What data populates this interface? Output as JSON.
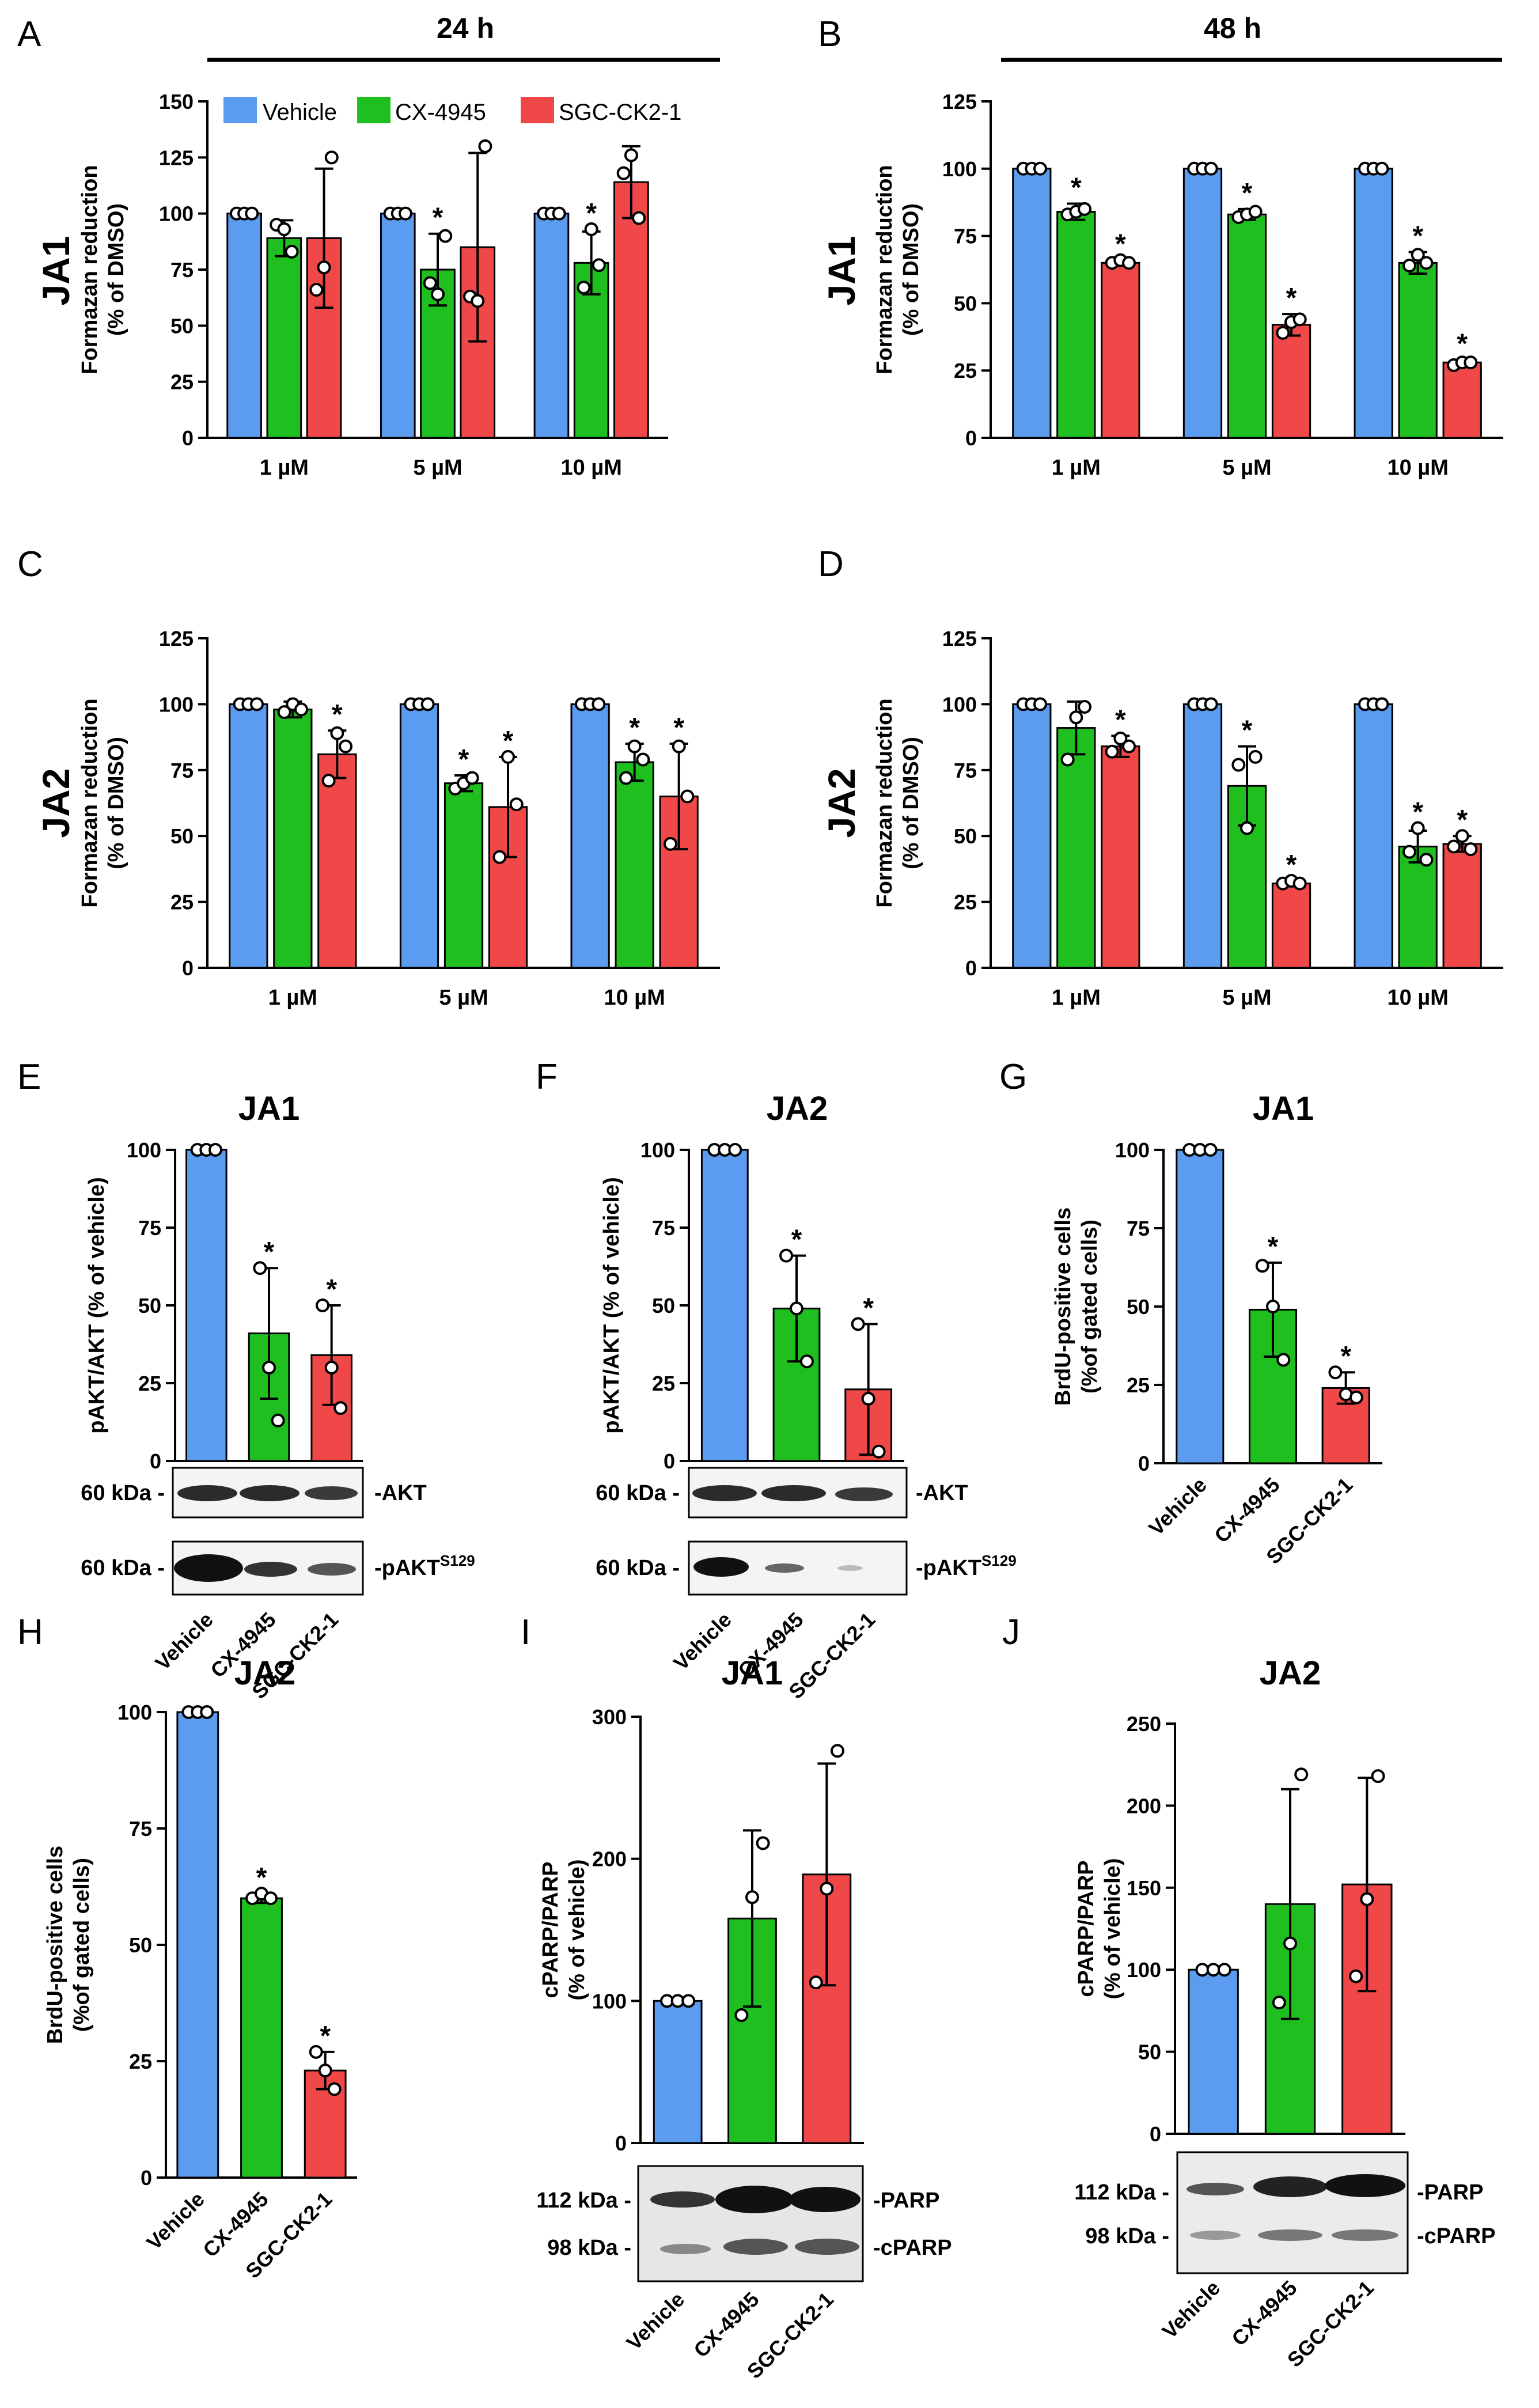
{
  "colors": {
    "vehicle": "#5b9bf0",
    "cx": "#1fbf1f",
    "sgc": "#f04848",
    "axis": "#000000"
  },
  "time_labels": {
    "h24": "24 h",
    "h48": "48 h"
  },
  "legend": {
    "vehicle": "Vehicle",
    "cx": "CX-4945",
    "sgc": "SGC-CK2-1"
  },
  "panels": {
    "A": {
      "letter": "A",
      "row_label": "JA1",
      "ylabel_lines": [
        "Formazan reduction",
        "(% of DMSO)"
      ]
    },
    "B": {
      "letter": "B",
      "row_label": "JA1",
      "ylabel_lines": [
        "Formazan reduction",
        "(% of DMSO)"
      ]
    },
    "C": {
      "letter": "C",
      "row_label": "JA2",
      "ylabel_lines": [
        "Formazan reduction",
        "(% of DMSO)"
      ]
    },
    "D": {
      "letter": "D",
      "row_label": "JA2",
      "ylabel_lines": [
        "Formazan reduction",
        "(% of DMSO)"
      ]
    },
    "E": {
      "letter": "E",
      "title": "JA1",
      "ylabel_lines": [
        "pAKT/AKT (% of vehicle)"
      ],
      "blot_rows": [
        {
          "kda": "60 kDa -",
          "label": "-AKT"
        },
        {
          "kda": "60 kDa -",
          "label": "-pAKT",
          "sup": "S129"
        }
      ]
    },
    "F": {
      "letter": "F",
      "title": "JA2",
      "ylabel_lines": [
        "pAKT/AKT (% of vehicle)"
      ],
      "blot_rows": [
        {
          "kda": "60 kDa -",
          "label": "-AKT"
        },
        {
          "kda": "60 kDa -",
          "label": "-pAKT",
          "sup": "S129"
        }
      ]
    },
    "G": {
      "letter": "G",
      "title": "JA1",
      "ylabel_lines": [
        "BrdU-positive cells",
        "(%of gated cells)"
      ]
    },
    "H": {
      "letter": "H",
      "title": "JA2",
      "ylabel_lines": [
        "BrdU-positive cells",
        "(%of gated cells)"
      ]
    },
    "I": {
      "letter": "I",
      "title": "JA1",
      "ylabel_lines": [
        "cPARP/PARP",
        "(% of vehicle)"
      ],
      "blot_rows": [
        {
          "kda": "112 kDa -",
          "label": "-PARP"
        },
        {
          "kda": "98 kDa -",
          "label": "-cPARP"
        }
      ]
    },
    "J": {
      "letter": "J",
      "title": "JA2",
      "ylabel_lines": [
        "cPARP/PARP",
        "(% of vehicle)"
      ],
      "blot_rows": [
        {
          "kda": "112 kDa -",
          "label": "-PARP"
        },
        {
          "kda": "98 kDa -",
          "label": "-cPARP"
        }
      ]
    }
  },
  "chart_data": [
    {
      "id": "A",
      "type": "bar",
      "title": "JA1 24 h",
      "ylabel": "Formazan reduction (% of DMSO)",
      "ylim": [
        0,
        150
      ],
      "yticks": [
        0,
        25,
        50,
        75,
        100,
        125,
        150
      ],
      "categories": [
        "1 µM",
        "5 µM",
        "10 µM"
      ],
      "series": [
        {
          "name": "Vehicle",
          "values": [
            100,
            100,
            100
          ],
          "err": [
            0,
            0,
            0
          ],
          "points": [
            [
              100,
              100,
              100
            ],
            [
              100,
              100,
              100
            ],
            [
              100,
              100,
              100
            ]
          ],
          "sig": [
            false,
            false,
            false
          ]
        },
        {
          "name": "CX-4945",
          "values": [
            89,
            75,
            78
          ],
          "err": [
            8,
            16,
            14
          ],
          "points": [
            [
              95,
              93,
              83
            ],
            [
              69,
              64,
              90
            ],
            [
              67,
              93,
              77
            ]
          ],
          "sig": [
            false,
            true,
            true
          ]
        },
        {
          "name": "SGC-CK2-1",
          "values": [
            89,
            85,
            114
          ],
          "err": [
            31,
            42,
            16
          ],
          "points": [
            [
              66,
              76,
              125
            ],
            [
              63,
              61,
              130
            ],
            [
              118,
              126,
              98
            ]
          ],
          "sig": [
            false,
            false,
            false
          ]
        }
      ]
    },
    {
      "id": "B",
      "type": "bar",
      "title": "JA1 48 h",
      "ylabel": "Formazan reduction (% of DMSO)",
      "ylim": [
        0,
        125
      ],
      "yticks": [
        0,
        25,
        50,
        75,
        100,
        125
      ],
      "categories": [
        "1 µM",
        "5 µM",
        "10 µM"
      ],
      "series": [
        {
          "name": "Vehicle",
          "values": [
            100,
            100,
            100
          ],
          "err": [
            0,
            0,
            0
          ],
          "points": [
            [
              100,
              100,
              100
            ],
            [
              100,
              100,
              100
            ],
            [
              100,
              100,
              100
            ]
          ],
          "sig": [
            false,
            false,
            false
          ]
        },
        {
          "name": "CX-4945",
          "values": [
            84,
            83,
            65
          ],
          "err": [
            3,
            2,
            4
          ],
          "points": [
            [
              83,
              84,
              85
            ],
            [
              82,
              83,
              84
            ],
            [
              64,
              68,
              65
            ]
          ],
          "sig": [
            true,
            true,
            true
          ]
        },
        {
          "name": "SGC-CK2-1",
          "values": [
            65,
            42,
            28
          ],
          "err": [
            1,
            4,
            1
          ],
          "points": [
            [
              65,
              66,
              65
            ],
            [
              39,
              43,
              44
            ],
            [
              27,
              28,
              28
            ]
          ],
          "sig": [
            true,
            true,
            true
          ]
        }
      ]
    },
    {
      "id": "C",
      "type": "bar",
      "title": "JA2 24 h",
      "ylabel": "Formazan reduction (% of DMSO)",
      "ylim": [
        0,
        125
      ],
      "yticks": [
        0,
        25,
        50,
        75,
        100,
        125
      ],
      "categories": [
        "1 µM",
        "5 µM",
        "10 µM"
      ],
      "series": [
        {
          "name": "Vehicle",
          "values": [
            100,
            100,
            100
          ],
          "err": [
            0,
            0,
            0
          ],
          "points": [
            [
              100,
              100,
              100
            ],
            [
              100,
              100,
              100
            ],
            [
              100,
              100,
              100
            ]
          ],
          "sig": [
            false,
            false,
            false
          ]
        },
        {
          "name": "CX-4945",
          "values": [
            98,
            70,
            78
          ],
          "err": [
            3,
            3,
            7
          ],
          "points": [
            [
              97,
              100,
              98
            ],
            [
              68,
              70,
              72
            ],
            [
              72,
              84,
              79
            ]
          ],
          "sig": [
            false,
            true,
            true
          ]
        },
        {
          "name": "SGC-CK2-1",
          "values": [
            81,
            61,
            65
          ],
          "err": [
            9,
            19,
            20
          ],
          "points": [
            [
              71,
              89,
              84
            ],
            [
              42,
              80,
              62
            ],
            [
              47,
              84,
              65
            ]
          ],
          "sig": [
            true,
            true,
            true
          ]
        }
      ]
    },
    {
      "id": "D",
      "type": "bar",
      "title": "JA2 48 h",
      "ylabel": "Formazan reduction (% of DMSO)",
      "ylim": [
        0,
        125
      ],
      "yticks": [
        0,
        25,
        50,
        75,
        100,
        125
      ],
      "categories": [
        "1 µM",
        "5 µM",
        "10 µM"
      ],
      "series": [
        {
          "name": "Vehicle",
          "values": [
            100,
            100,
            100
          ],
          "err": [
            0,
            0,
            0
          ],
          "points": [
            [
              100,
              100,
              100
            ],
            [
              100,
              100,
              100
            ],
            [
              100,
              100,
              100
            ]
          ],
          "sig": [
            false,
            false,
            false
          ]
        },
        {
          "name": "CX-4945",
          "values": [
            91,
            69,
            46
          ],
          "err": [
            10,
            15,
            6
          ],
          "points": [
            [
              79,
              95,
              99
            ],
            [
              77,
              53,
              80
            ],
            [
              44,
              53,
              41
            ]
          ],
          "sig": [
            false,
            true,
            true
          ]
        },
        {
          "name": "SGC-CK2-1",
          "values": [
            84,
            32,
            47
          ],
          "err": [
            4,
            1,
            3
          ],
          "points": [
            [
              82,
              87,
              84
            ],
            [
              32,
              33,
              32
            ],
            [
              46,
              50,
              45
            ]
          ],
          "sig": [
            true,
            true,
            true
          ]
        }
      ]
    },
    {
      "id": "E",
      "type": "bar",
      "title": "JA1",
      "ylabel": "pAKT/AKT (% of vehicle)",
      "ylim": [
        0,
        100
      ],
      "yticks": [
        0,
        25,
        50,
        75,
        100
      ],
      "categories": [
        "Vehicle",
        "CX-4945",
        "SGC-CK2-1"
      ],
      "values": [
        100,
        41,
        34
      ],
      "err": [
        0,
        21,
        16
      ],
      "points": [
        [
          100,
          100,
          100
        ],
        [
          62,
          30,
          13
        ],
        [
          50,
          30,
          17
        ]
      ],
      "sig": [
        false,
        true,
        true
      ]
    },
    {
      "id": "F",
      "type": "bar",
      "title": "JA2",
      "ylabel": "pAKT/AKT (% of vehicle)",
      "ylim": [
        0,
        100
      ],
      "yticks": [
        0,
        25,
        50,
        75,
        100
      ],
      "categories": [
        "Vehicle",
        "CX-4945",
        "SGC-CK2-1"
      ],
      "values": [
        100,
        49,
        23
      ],
      "err": [
        0,
        17,
        21
      ],
      "points": [
        [
          100,
          100,
          100
        ],
        [
          66,
          49,
          32
        ],
        [
          44,
          20,
          3
        ]
      ],
      "sig": [
        false,
        true,
        true
      ]
    },
    {
      "id": "G",
      "type": "bar",
      "title": "JA1",
      "ylabel": "BrdU-positive cells (%of gated cells)",
      "ylim": [
        0,
        100
      ],
      "yticks": [
        0,
        25,
        50,
        75,
        100
      ],
      "categories": [
        "Vehicle",
        "CX-4945",
        "SGC-CK2-1"
      ],
      "values": [
        100,
        49,
        24
      ],
      "err": [
        0,
        15,
        5
      ],
      "points": [
        [
          100,
          100,
          100
        ],
        [
          63,
          50,
          33
        ],
        [
          29,
          22,
          21
        ]
      ],
      "sig": [
        false,
        true,
        true
      ]
    },
    {
      "id": "H",
      "type": "bar",
      "title": "JA2",
      "ylabel": "BrdU-positive cells (%of gated cells)",
      "ylim": [
        0,
        100
      ],
      "yticks": [
        0,
        25,
        50,
        75,
        100
      ],
      "categories": [
        "Vehicle",
        "CX-4945",
        "SGC-CK2-1"
      ],
      "values": [
        100,
        60,
        23
      ],
      "err": [
        0,
        1,
        4
      ],
      "points": [
        [
          100,
          100,
          100
        ],
        [
          60,
          61,
          60
        ],
        [
          27,
          23,
          19
        ]
      ],
      "sig": [
        false,
        true,
        true
      ]
    },
    {
      "id": "I",
      "type": "bar",
      "title": "JA1",
      "ylabel": "cPARP/PARP (% of vehicle)",
      "ylim": [
        0,
        300
      ],
      "yticks": [
        0,
        100,
        200,
        300
      ],
      "categories": [
        "Vehicle",
        "CX-4945",
        "SGC-CK2-1"
      ],
      "values": [
        100,
        158,
        189
      ],
      "err": [
        0,
        62,
        78
      ],
      "points": [
        [
          100,
          100,
          100
        ],
        [
          90,
          173,
          211
        ],
        [
          113,
          179,
          276
        ]
      ],
      "sig": [
        false,
        false,
        false
      ]
    },
    {
      "id": "J",
      "type": "bar",
      "title": "JA2",
      "ylabel": "cPARP/PARP (% of vehicle)",
      "ylim": [
        0,
        250
      ],
      "yticks": [
        0,
        50,
        100,
        150,
        200,
        250
      ],
      "categories": [
        "Vehicle",
        "CX-4945",
        "SGC-CK2-1"
      ],
      "values": [
        100,
        140,
        152
      ],
      "err": [
        0,
        70,
        65
      ],
      "points": [
        [
          100,
          100,
          100
        ],
        [
          80,
          116,
          219
        ],
        [
          96,
          143,
          218
        ]
      ],
      "sig": [
        false,
        false,
        false
      ]
    }
  ]
}
